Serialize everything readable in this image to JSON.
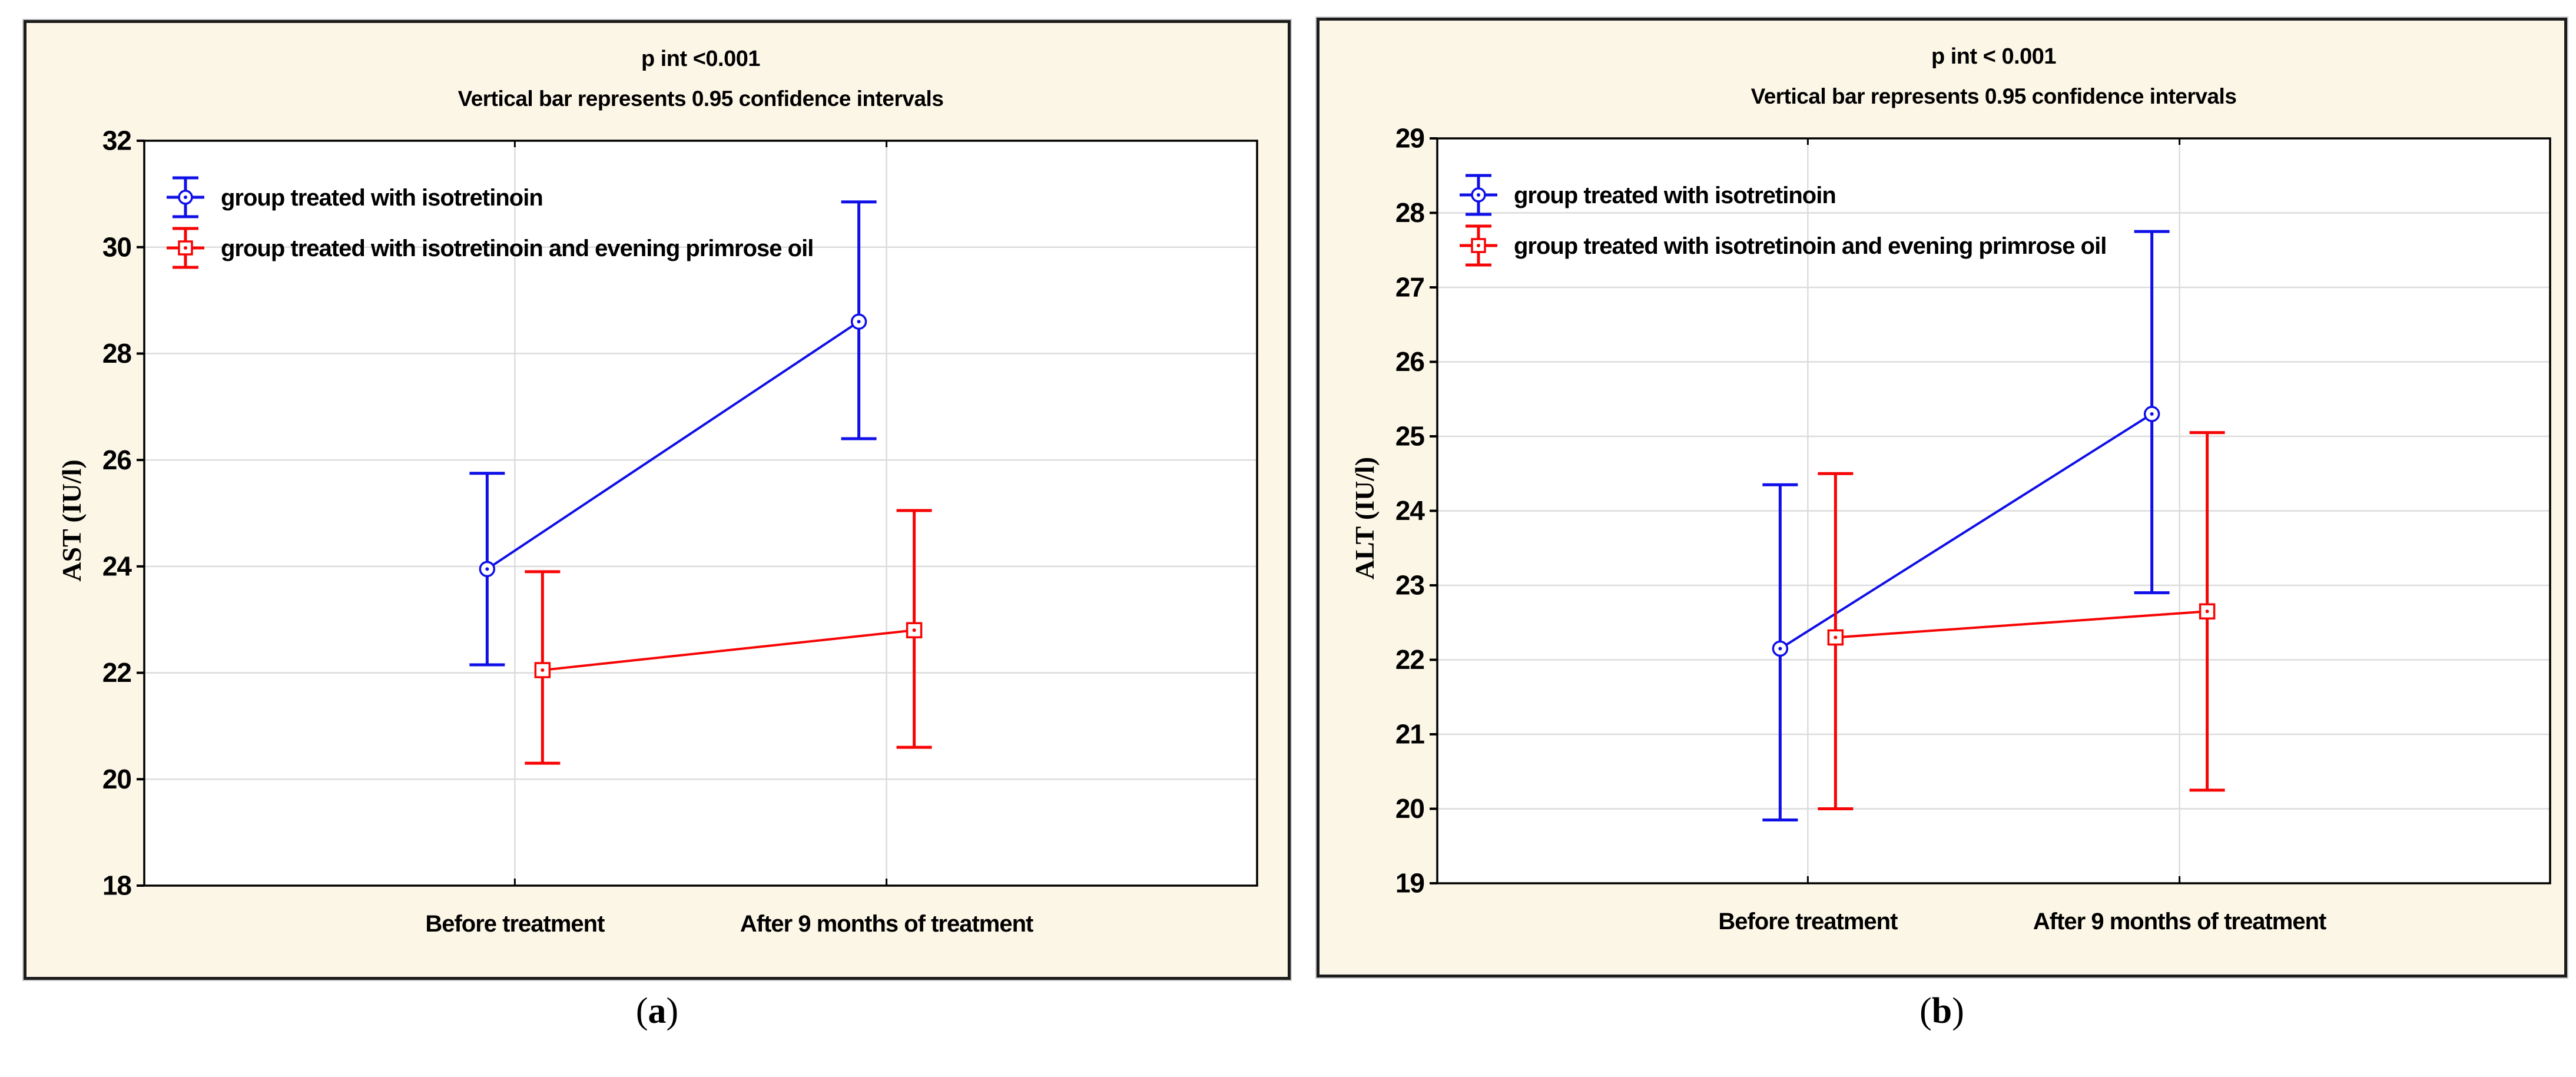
{
  "figure": {
    "panels": [
      {
        "caption_open": "(",
        "caption_letter": "a",
        "caption_close": ")"
      },
      {
        "caption_open": "(",
        "caption_letter": "b",
        "caption_close": ")"
      }
    ]
  },
  "colors": {
    "series_isotretinoin": "#0f0fe8",
    "series_isotretinoin_epo": "#f70404",
    "panel_background": "#fcf6e6",
    "plot_background": "#ffffff",
    "gridline": "#dcdcdc",
    "frame": "#000000",
    "text": "#000000"
  },
  "chart_data": [
    {
      "type": "line",
      "panel": "a",
      "title": "p int <0.001",
      "subtitle": "Vertical bar represents 0.95 confidence intervals",
      "ylabel": "AST (IU/l)",
      "xlabel": "",
      "categories": [
        "Before treatment",
        "After 9 months of treatment"
      ],
      "ylim": [
        18,
        32
      ],
      "ytick_step": 2,
      "grid": true,
      "legend_position": "top-left-inside",
      "error_bar_note": "0.95 confidence intervals",
      "series": [
        {
          "name": "group treated with isotretinoin",
          "color_key": "series_isotretinoin",
          "marker": "circle",
          "values": [
            23.95,
            28.6
          ],
          "ci_low": [
            22.15,
            26.4
          ],
          "ci_high": [
            25.75,
            30.85
          ]
        },
        {
          "name": "group treated with isotretinoin and evening primrose oil",
          "color_key": "series_isotretinoin_epo",
          "marker": "square",
          "values": [
            22.05,
            22.8
          ],
          "ci_low": [
            20.3,
            20.6
          ],
          "ci_high": [
            23.9,
            25.05
          ]
        }
      ]
    },
    {
      "type": "line",
      "panel": "b",
      "title": "p int < 0.001",
      "subtitle": "Vertical bar represents 0.95 confidence intervals",
      "ylabel": "ALT (IU/l)",
      "xlabel": "",
      "categories": [
        "Before treatment",
        "After 9 months of treatment"
      ],
      "ylim": [
        19,
        29
      ],
      "ytick_step": 1,
      "grid": true,
      "legend_position": "top-left-inside",
      "error_bar_note": "0.95 confidence intervals",
      "series": [
        {
          "name": "group treated with isotretinoin",
          "color_key": "series_isotretinoin",
          "marker": "circle",
          "values": [
            22.15,
            25.3
          ],
          "ci_low": [
            19.85,
            22.9
          ],
          "ci_high": [
            24.35,
            27.75
          ]
        },
        {
          "name": "group treated with isotretinoin and evening primrose oil",
          "color_key": "series_isotretinoin_epo",
          "marker": "square",
          "values": [
            22.3,
            22.65
          ],
          "ci_low": [
            20.0,
            20.25
          ],
          "ci_high": [
            24.5,
            25.05
          ]
        }
      ]
    }
  ]
}
